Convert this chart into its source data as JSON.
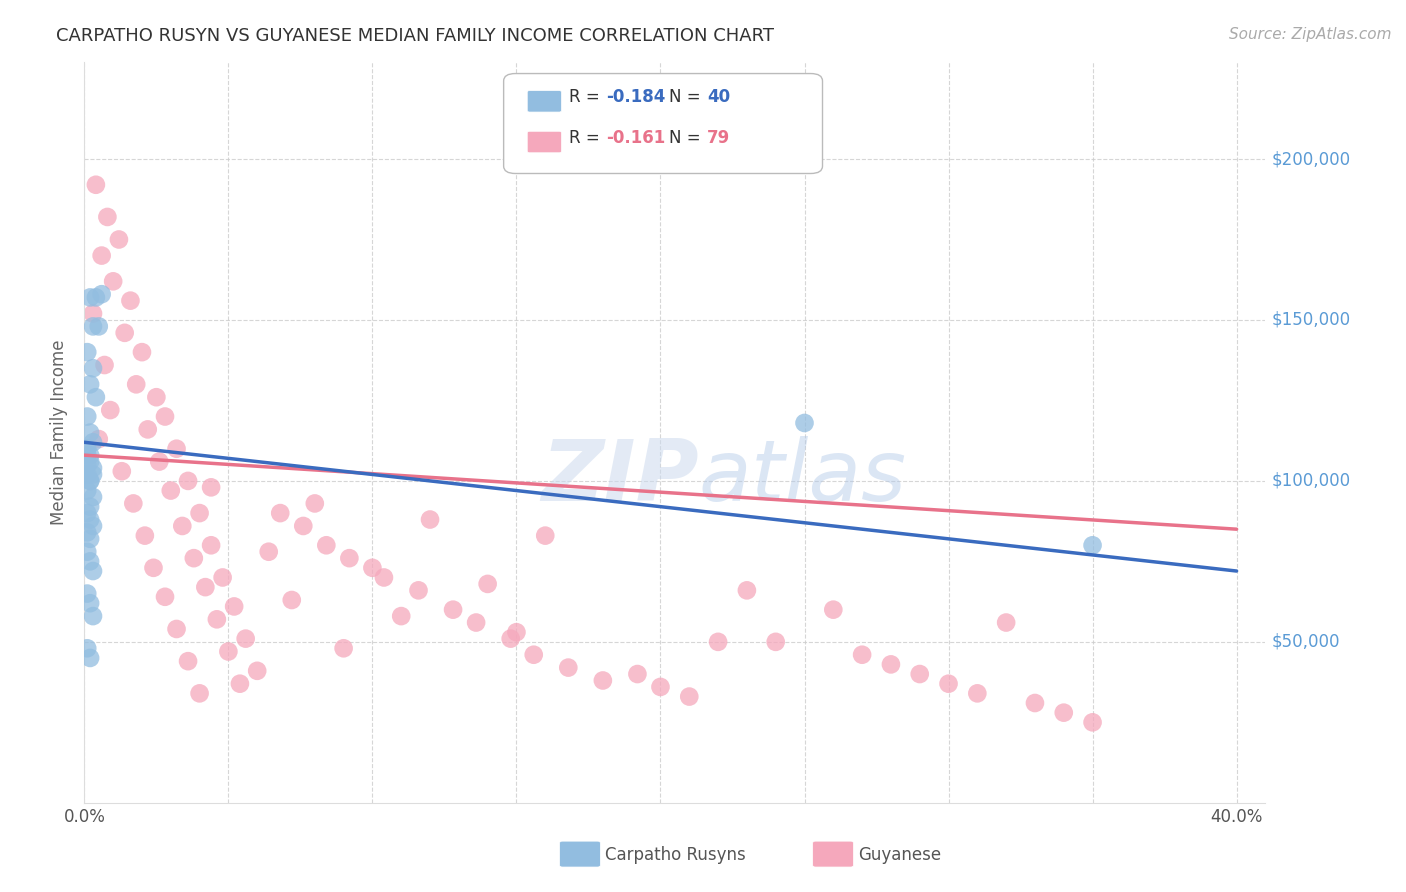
{
  "title": "CARPATHO RUSYN VS GUYANESE MEDIAN FAMILY INCOME CORRELATION CHART",
  "source": "Source: ZipAtlas.com",
  "ylabel": "Median Family Income",
  "y_tick_labels": [
    "$50,000",
    "$100,000",
    "$150,000",
    "$200,000"
  ],
  "y_tick_values": [
    50000,
    100000,
    150000,
    200000
  ],
  "ylim": [
    0,
    230000
  ],
  "xlim": [
    0.0,
    0.41
  ],
  "watermark": "ZIPatlas",
  "legend_blue_r": "-0.184",
  "legend_blue_n": "40",
  "legend_pink_r": "-0.161",
  "legend_pink_n": "79",
  "blue_color": "#92bde0",
  "pink_color": "#f5a8bc",
  "blue_line_color": "#3a6bbf",
  "pink_line_color": "#e8728a",
  "bg_color": "#ffffff",
  "grid_color": "#cccccc",
  "title_color": "#333333",
  "source_color": "#aaaaaa",
  "right_label_color": "#5b9bd5",
  "blue_scatter_x": [
    0.002,
    0.004,
    0.006,
    0.003,
    0.005,
    0.001,
    0.003,
    0.002,
    0.004,
    0.001,
    0.002,
    0.003,
    0.001,
    0.002,
    0.001,
    0.003,
    0.002,
    0.001,
    0.003,
    0.002,
    0.001,
    0.002,
    0.003,
    0.001,
    0.002,
    0.001,
    0.002,
    0.003,
    0.001,
    0.002,
    0.001,
    0.002,
    0.003,
    0.25,
    0.001,
    0.002,
    0.003,
    0.35,
    0.001,
    0.002
  ],
  "blue_scatter_y": [
    157000,
    157000,
    158000,
    148000,
    148000,
    140000,
    135000,
    130000,
    126000,
    120000,
    115000,
    112000,
    110000,
    108000,
    105000,
    102000,
    100000,
    97000,
    95000,
    92000,
    90000,
    88000,
    86000,
    84000,
    82000,
    108000,
    106000,
    104000,
    102000,
    100000,
    78000,
    75000,
    72000,
    118000,
    65000,
    62000,
    58000,
    80000,
    48000,
    45000
  ],
  "pink_scatter_x": [
    0.004,
    0.008,
    0.012,
    0.006,
    0.01,
    0.016,
    0.003,
    0.014,
    0.02,
    0.007,
    0.018,
    0.025,
    0.009,
    0.028,
    0.022,
    0.005,
    0.032,
    0.026,
    0.013,
    0.036,
    0.03,
    0.017,
    0.04,
    0.034,
    0.021,
    0.044,
    0.038,
    0.024,
    0.048,
    0.042,
    0.028,
    0.052,
    0.046,
    0.032,
    0.056,
    0.05,
    0.036,
    0.06,
    0.054,
    0.04,
    0.08,
    0.12,
    0.16,
    0.064,
    0.1,
    0.14,
    0.072,
    0.11,
    0.15,
    0.09,
    0.24,
    0.044,
    0.068,
    0.076,
    0.084,
    0.092,
    0.104,
    0.116,
    0.128,
    0.136,
    0.148,
    0.156,
    0.168,
    0.18,
    0.32,
    0.192,
    0.2,
    0.21,
    0.22,
    0.23,
    0.26,
    0.27,
    0.28,
    0.29,
    0.3,
    0.31,
    0.33,
    0.34,
    0.35
  ],
  "pink_scatter_y": [
    192000,
    182000,
    175000,
    170000,
    162000,
    156000,
    152000,
    146000,
    140000,
    136000,
    130000,
    126000,
    122000,
    120000,
    116000,
    113000,
    110000,
    106000,
    103000,
    100000,
    97000,
    93000,
    90000,
    86000,
    83000,
    80000,
    76000,
    73000,
    70000,
    67000,
    64000,
    61000,
    57000,
    54000,
    51000,
    47000,
    44000,
    41000,
    37000,
    34000,
    93000,
    88000,
    83000,
    78000,
    73000,
    68000,
    63000,
    58000,
    53000,
    48000,
    50000,
    98000,
    90000,
    86000,
    80000,
    76000,
    70000,
    66000,
    60000,
    56000,
    51000,
    46000,
    42000,
    38000,
    56000,
    40000,
    36000,
    33000,
    50000,
    66000,
    60000,
    46000,
    43000,
    40000,
    37000,
    34000,
    31000,
    28000,
    25000
  ]
}
